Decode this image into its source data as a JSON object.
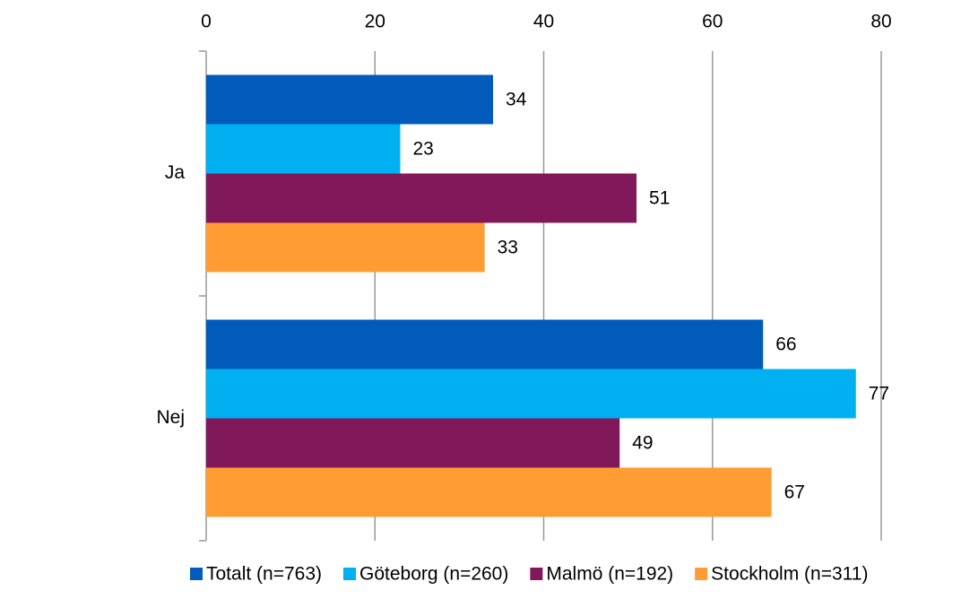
{
  "chart_data": {
    "type": "bar",
    "orientation": "horizontal",
    "categories": [
      "Ja",
      "Nej"
    ],
    "series": [
      {
        "name": "Totalt (n=763)",
        "color": "#005bbb",
        "values": [
          34,
          66
        ]
      },
      {
        "name": "Göteborg (n=260)",
        "color": "#00b0f0",
        "values": [
          23,
          77
        ]
      },
      {
        "name": "Malmö (n=192)",
        "color": "#80185a",
        "values": [
          51,
          49
        ]
      },
      {
        "name": "Stockholm (n=311)",
        "color": "#ff9c33",
        "values": [
          33,
          67
        ]
      }
    ],
    "xlim": [
      0,
      80
    ],
    "xticks": [
      0,
      20,
      40,
      60,
      80
    ],
    "grid": true,
    "legend": "bottom"
  }
}
